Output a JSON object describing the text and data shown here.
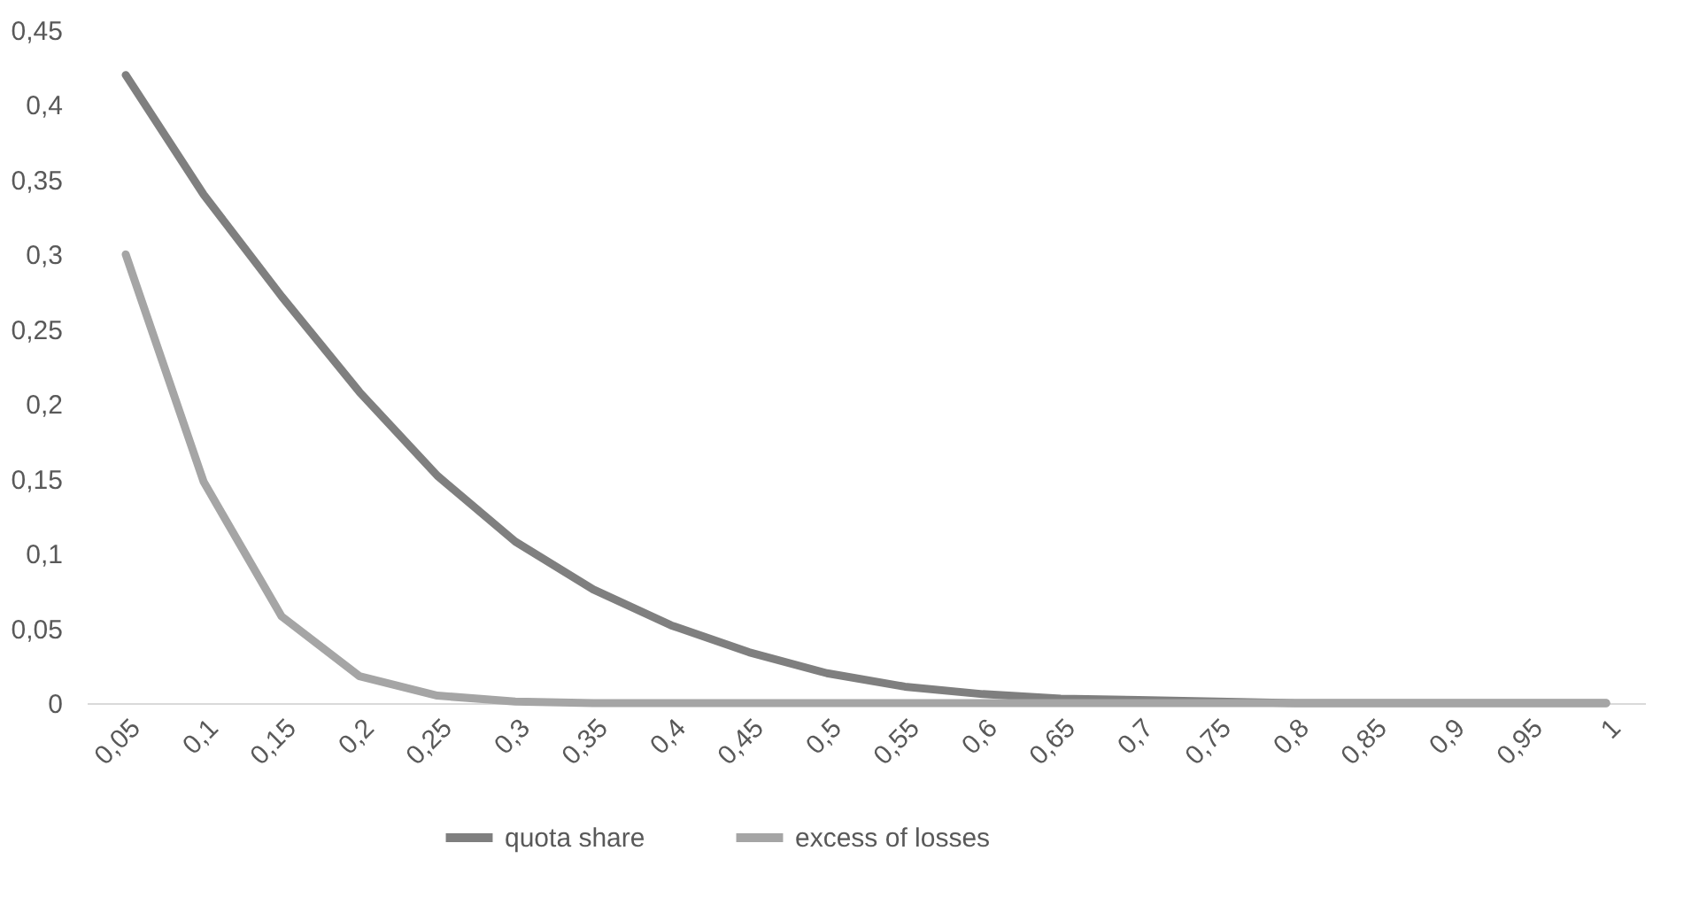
{
  "chart_data": {
    "type": "line",
    "categories": [
      "0,05",
      "0,1",
      "0,15",
      "0,2",
      "0,25",
      "0,3",
      "0,35",
      "0,4",
      "0,45",
      "0,5",
      "0,55",
      "0,6",
      "0,65",
      "0,7",
      "0,75",
      "0,8",
      "0,85",
      "0,9",
      "0,95",
      "1"
    ],
    "series": [
      {
        "name": "quota share",
        "color": "#7f7f7f",
        "values": [
          0.42,
          0.34,
          0.272,
          0.208,
          0.152,
          0.108,
          0.076,
          0.052,
          0.034,
          0.02,
          0.011,
          0.006,
          0.003,
          0.002,
          0.001,
          0,
          0,
          0,
          0,
          0
        ]
      },
      {
        "name": "excess of losses",
        "color": "#a5a5a5",
        "values": [
          0.3,
          0.148,
          0.058,
          0.018,
          0.005,
          0.001,
          0,
          0,
          0,
          0,
          0,
          0,
          0,
          0,
          0,
          0,
          0,
          0,
          0,
          0
        ]
      }
    ],
    "ylim": [
      0,
      0.45
    ],
    "yticks": [
      {
        "value": 0,
        "label": "0"
      },
      {
        "value": 0.05,
        "label": "0,05"
      },
      {
        "value": 0.1,
        "label": "0,1"
      },
      {
        "value": 0.15,
        "label": "0,15"
      },
      {
        "value": 0.2,
        "label": "0,2"
      },
      {
        "value": 0.25,
        "label": "0,25"
      },
      {
        "value": 0.3,
        "label": "0,3"
      },
      {
        "value": 0.35,
        "label": "0,35"
      },
      {
        "value": 0.4,
        "label": "0,4"
      },
      {
        "value": 0.45,
        "label": "0,45"
      }
    ],
    "grid": false,
    "legend": "bottom",
    "marker": "none",
    "line_style": "solid"
  }
}
